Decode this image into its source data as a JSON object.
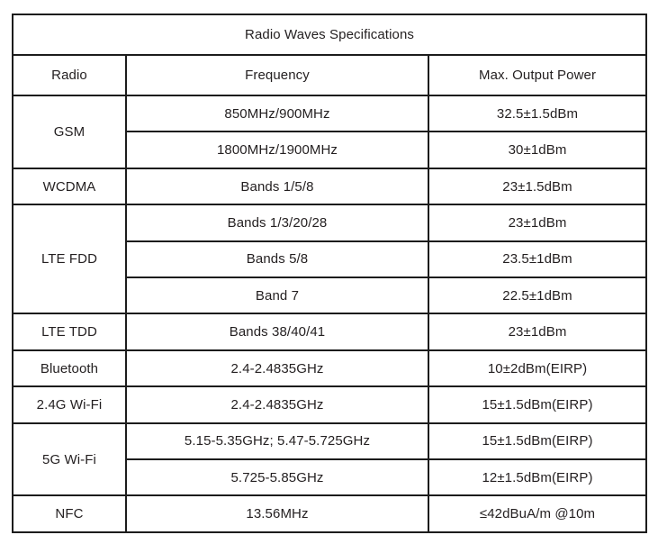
{
  "table": {
    "title": "Radio Waves Specifications",
    "columns": [
      "Radio",
      "Frequency",
      "Max. Output Power"
    ],
    "groups": [
      {
        "radio": "GSM",
        "entries": [
          {
            "frequency": "850MHz/900MHz",
            "power": "32.5±1.5dBm"
          },
          {
            "frequency": "1800MHz/1900MHz",
            "power": "30±1dBm"
          }
        ]
      },
      {
        "radio": "WCDMA",
        "entries": [
          {
            "frequency": "Bands 1/5/8",
            "power": "23±1.5dBm"
          }
        ]
      },
      {
        "radio": "LTE FDD",
        "entries": [
          {
            "frequency": "Bands 1/3/20/28",
            "power": "23±1dBm"
          },
          {
            "frequency": "Bands 5/8",
            "power": "23.5±1dBm"
          },
          {
            "frequency": "Band 7",
            "power": "22.5±1dBm"
          }
        ]
      },
      {
        "radio": "LTE TDD",
        "entries": [
          {
            "frequency": "Bands 38/40/41",
            "power": "23±1dBm"
          }
        ]
      },
      {
        "radio": "Bluetooth",
        "entries": [
          {
            "frequency": "2.4-2.4835GHz",
            "power": "10±2dBm(EIRP)"
          }
        ]
      },
      {
        "radio": "2.4G Wi-Fi",
        "entries": [
          {
            "frequency": "2.4-2.4835GHz",
            "power": "15±1.5dBm(EIRP)"
          }
        ]
      },
      {
        "radio": "5G Wi-Fi",
        "entries": [
          {
            "frequency": "5.15-5.35GHz; 5.47-5.725GHz",
            "power": "15±1.5dBm(EIRP)"
          },
          {
            "frequency": "5.725-5.85GHz",
            "power": "12±1.5dBm(EIRP)"
          }
        ]
      },
      {
        "radio": "NFC",
        "entries": [
          {
            "frequency": "13.56MHz",
            "power": "≤42dBuA/m @10m"
          }
        ]
      }
    ],
    "colors": {
      "border": "#1c1c1c",
      "text": "#231f20",
      "background": "#ffffff"
    }
  }
}
